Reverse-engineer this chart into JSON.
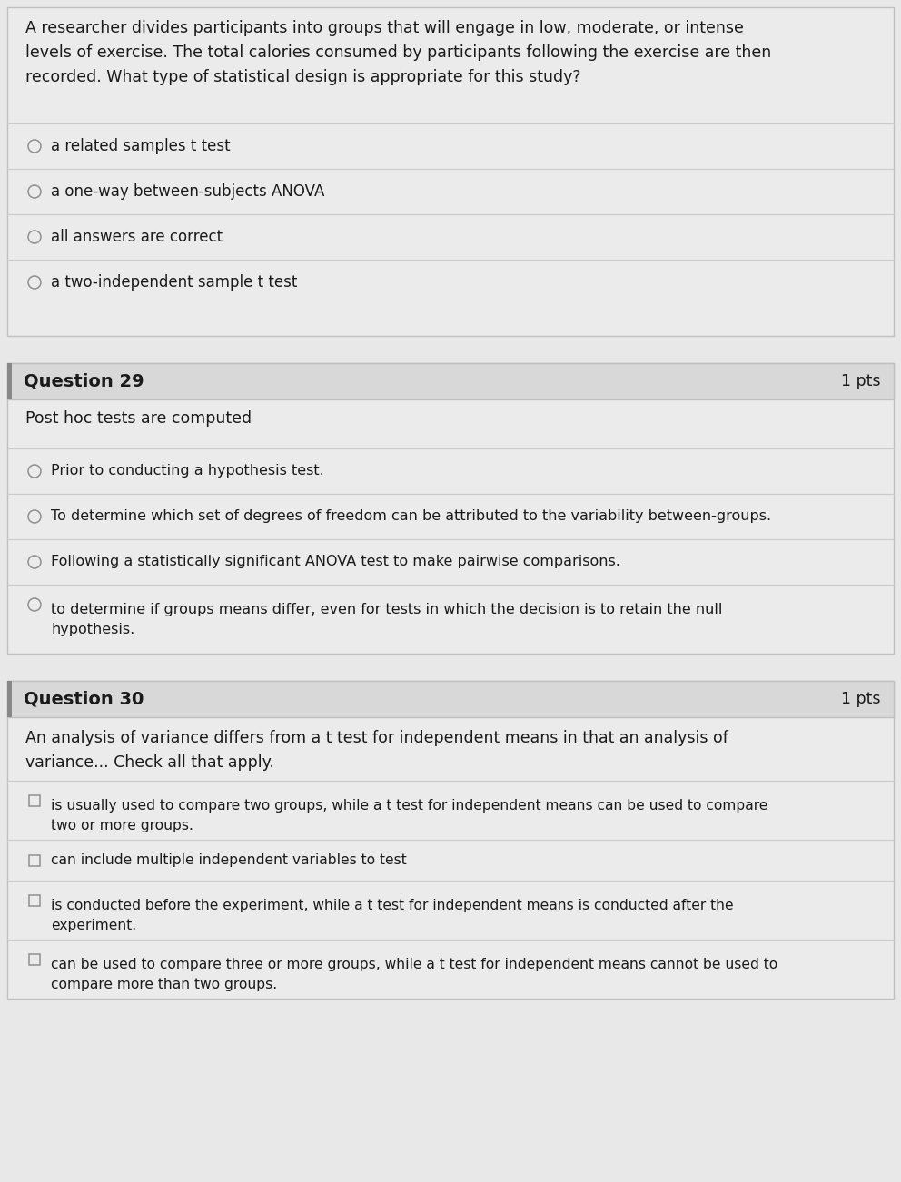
{
  "bg_color": "#e8e8e8",
  "box_bg": "#ebebeb",
  "box_bg_inner": "#e4e4e4",
  "header_bg": "#d8d8d8",
  "text_color": "#1a1a1a",
  "border_color": "#c0c0c0",
  "line_color": "#cccccc",
  "accent_color": "#909090",
  "q28_prompt": "A researcher divides participants into groups that will engage in low, moderate, or intense\nlevels of exercise. The total calories consumed by participants following the exercise are then\nrecorded. What type of statistical design is appropriate for this study?",
  "q28_options": [
    "a related samples t test",
    "a one-way between-subjects ANOVA",
    "all answers are correct",
    "a two-independent sample t test"
  ],
  "q29_number": "Question 29",
  "q29_pts": "1 pts",
  "q29_prompt": "Post hoc tests are computed",
  "q29_options": [
    "Prior to conducting a hypothesis test.",
    "To determine which set of degrees of freedom can be attributed to the variability between-groups.",
    "Following a statistically significant ANOVA test to make pairwise comparisons.",
    "to determine if groups means differ, even for tests in which the decision is to retain the null\nhypothesis."
  ],
  "q30_number": "Question 30",
  "q30_pts": "1 pts",
  "q30_prompt": "An analysis of variance differs from a t test for independent means in that an analysis of\nvariance... Check all that apply.",
  "q30_options": [
    "is usually used to compare two groups, while a t test for independent means can be used to compare\ntwo or more groups.",
    "can include multiple independent variables to test",
    "is conducted before the experiment, while a t test for independent means is conducted after the\nexperiment.",
    "can be used to compare three or more groups, while a t test for independent means cannot be used to\ncompare more than two groups."
  ]
}
